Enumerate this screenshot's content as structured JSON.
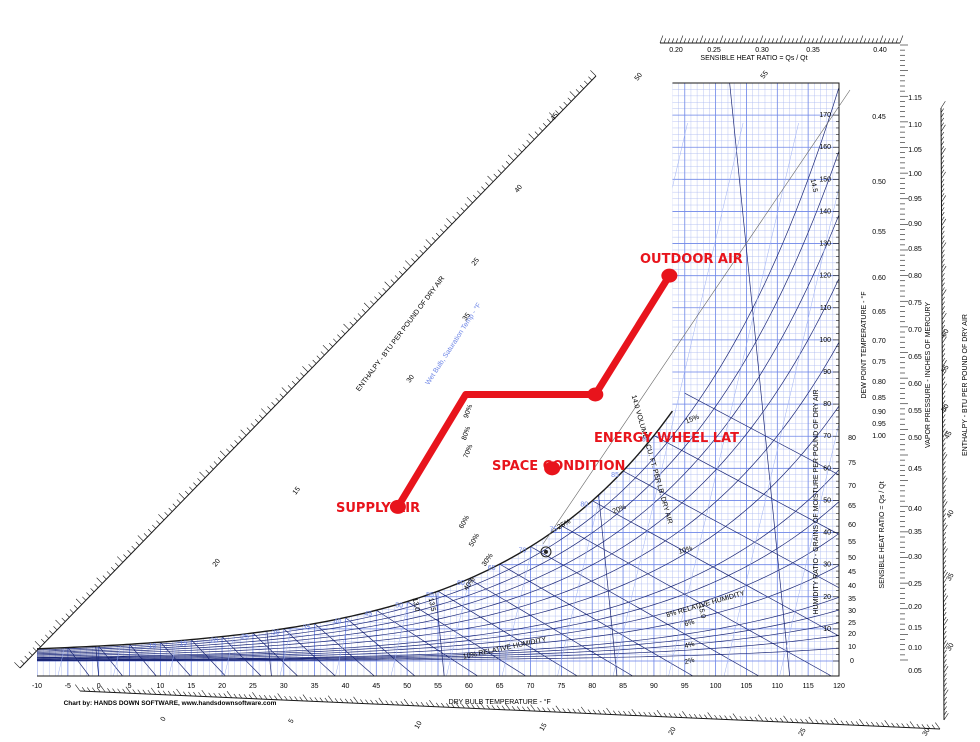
{
  "chart_data": {
    "type": "psychrometric",
    "title": "SENSIBLE HEAT RATIO = Qs / Qt",
    "credit": "Chart by: HANDS DOWN SOFTWARE, www.handsdownsoftware.com",
    "x_axis": {
      "label": "DRY BULB TEMPERATURE - °F",
      "range": [
        -10,
        120
      ],
      "ticks": [
        "-10",
        "-5",
        "0",
        "5",
        "10",
        "15",
        "20",
        "25",
        "30",
        "35",
        "40",
        "45",
        "50",
        "55",
        "60",
        "65",
        "70",
        "75",
        "80",
        "85",
        "90",
        "95",
        "100",
        "105",
        "110",
        "115",
        "120"
      ]
    },
    "humidity_ratio_axis": {
      "label": "HUMIDITY RATIO - GRAINS OF MOISTURE PER POUND OF DRY AIR",
      "range": [
        0,
        180
      ],
      "ticks": [
        "10",
        "20",
        "30",
        "40",
        "50",
        "60",
        "70",
        "80",
        "90",
        "100",
        "110",
        "120",
        "130",
        "140",
        "150",
        "160",
        "170"
      ]
    },
    "dew_point_axis": {
      "label": "DEW POINT TEMPERATURE - °F",
      "ticks": [
        "0",
        "10",
        "20",
        "25",
        "30",
        "35",
        "40",
        "45",
        "50",
        "55",
        "60",
        "65",
        "70",
        "75",
        "80"
      ]
    },
    "shr_top_scale": {
      "label": "SENSIBLE HEAT RATIO = Qs / Qt",
      "ticks": [
        "0.20",
        "0.25",
        "0.30",
        "0.35",
        "0.40"
      ]
    },
    "shr_right_scale": {
      "label": "SENSIBLE HEAT RATIO = Qs / Qt",
      "ticks": [
        "0.45",
        "0.50",
        "0.55",
        "0.60",
        "0.65",
        "0.70",
        "0.75",
        "0.80",
        "0.85",
        "0.90",
        "0.95",
        "1.00"
      ]
    },
    "vapor_pressure_axis": {
      "label": "VAPOR PRESSURE - INCHES OF MERCURY",
      "ticks": [
        "1.15",
        "1.10",
        "1.05",
        "1.00",
        "0.95",
        "0.90",
        "0.85",
        "0.80",
        "0.75",
        "0.70",
        "0.65",
        "0.60",
        "0.55",
        "0.50",
        "0.45",
        "0.40",
        "0.35",
        "0.30",
        "0.25",
        "0.20",
        "0.15",
        "0.10",
        "0.05"
      ]
    },
    "shr_protractor_ticks": [
      "0.40",
      "0.35",
      "0.30",
      "0.25",
      "0.20",
      "0.15",
      "0.10",
      "0.05"
    ],
    "enthalpy_left": {
      "label": "ENTHALPY - BTU PER POUND OF DRY AIR",
      "ticks": [
        "15",
        "20",
        "25",
        "30",
        "35",
        "40",
        "45",
        "50",
        "55"
      ]
    },
    "enthalpy_right": {
      "label": "ENTHALPY - BTU PER POUND OF DRY AIR",
      "ticks": [
        "60",
        "55",
        "50",
        "45",
        "40",
        "35",
        "30"
      ]
    },
    "enthalpy_bottom": {
      "ticks": [
        "0",
        "5",
        "10",
        "15",
        "20",
        "25",
        "30"
      ]
    },
    "wet_bulb": {
      "label": "Wet Bulb, Saturation Temp - °F",
      "ticks": [
        "10",
        "15",
        "20",
        "25",
        "30",
        "35",
        "40",
        "45",
        "50",
        "55",
        "60",
        "65",
        "70",
        "75",
        "80",
        "85",
        "90"
      ]
    },
    "rh_labels": [
      "10% RELATIVE HUMIDITY",
      "8% RELATIVE HUMIDITY",
      "6%",
      "4%",
      "2%",
      "10%",
      "15%",
      "20%",
      "25%",
      "30%",
      "40%",
      "50%",
      "60%",
      "70%",
      "80%",
      "90%"
    ],
    "volume_label": "14.0 VOLUME - CU. FT. PER LB. DRY AIR",
    "volume_ticks": [
      "13.0",
      "13.5",
      "14.5",
      "15.0"
    ],
    "process_line": {
      "color": "#e8141c",
      "points": [
        {
          "name": "SUPPLY AIR",
          "db": 48.5,
          "w": 48
        },
        {
          "name": "",
          "db": 59.5,
          "w": 83
        },
        {
          "name": "ENERGY WHEEL LAT",
          "db": 80.5,
          "w": 83
        },
        {
          "name": "OUTDOOR AIR",
          "db": 92.5,
          "w": 120
        }
      ]
    },
    "points": [
      {
        "name": "SUPPLY AIR",
        "db": 48.5,
        "w": 48
      },
      {
        "name": "SPACE CONDITION",
        "db": 73.5,
        "w": 60
      },
      {
        "name": "ENERGY WHEEL LAT",
        "db": 80.5,
        "w": 83
      },
      {
        "name": "OUTDOOR AIR",
        "db": 92.5,
        "w": 120
      }
    ],
    "comfort_marker": {
      "db": 72.5,
      "w": 34
    },
    "colors": {
      "grid": "#7088e8",
      "dense_grid": "#aab8f0",
      "wetbulb": "#1c2878",
      "process": "#e8141c"
    }
  }
}
